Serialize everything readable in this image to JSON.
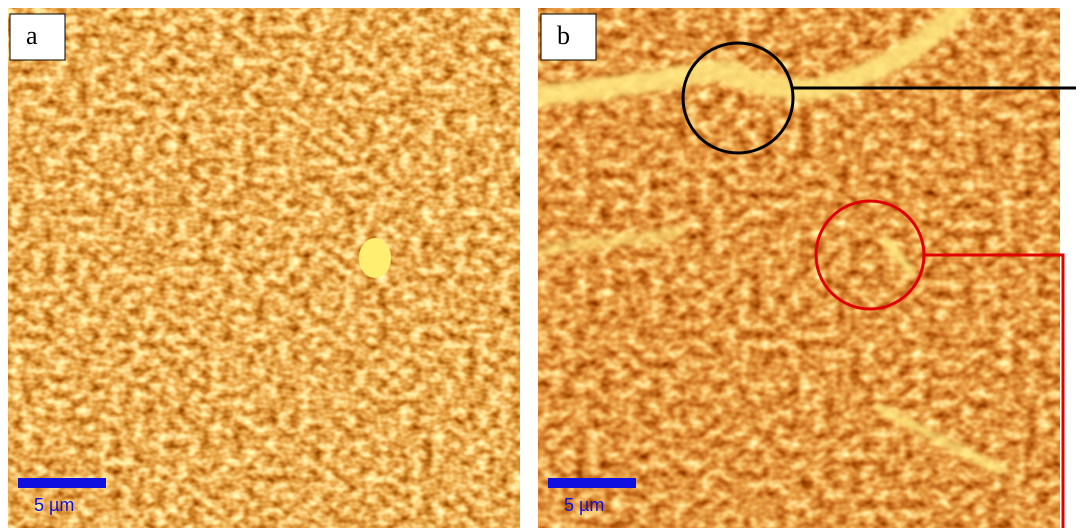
{
  "panels": [
    {
      "label": "a",
      "scale_bar": "5 µm"
    },
    {
      "label": "b",
      "scale_bar": "5 µm"
    }
  ]
}
